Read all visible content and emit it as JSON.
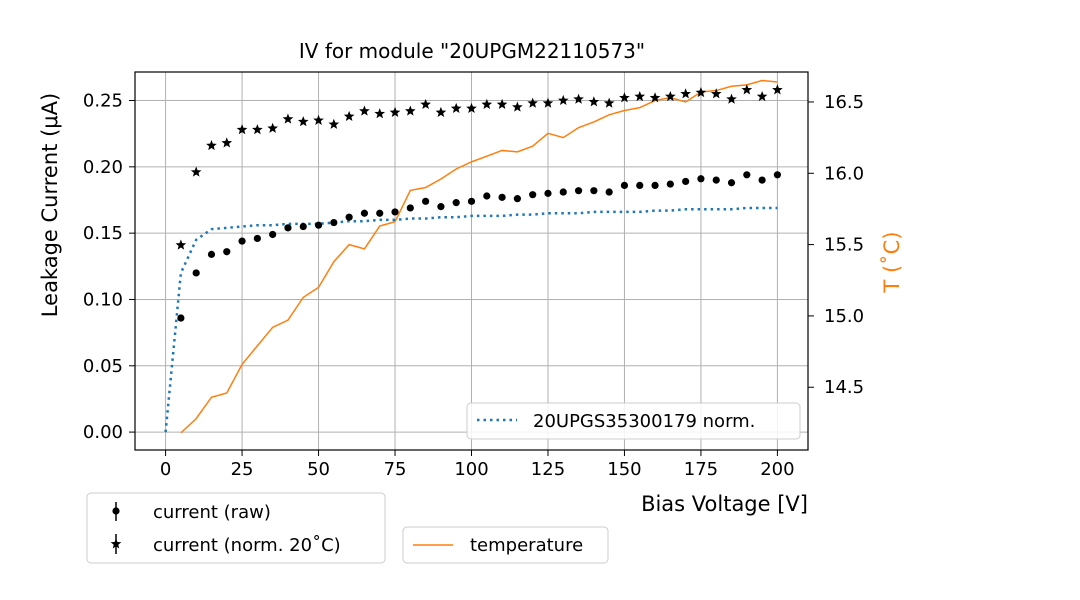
{
  "chart_data": {
    "type": "scatter",
    "title": "IV for module \"20UPGM22110573\"",
    "xlabel": "Bias Voltage [V]",
    "ylabel": "Leakage Current (μA)",
    "y2label": "T (˚C)",
    "xlim": [
      -10,
      210
    ],
    "ylim": [
      -0.0135,
      0.2715
    ],
    "y2lim": [
      14.06,
      16.71
    ],
    "x_ticks": [
      0,
      25,
      50,
      75,
      100,
      125,
      150,
      175,
      200
    ],
    "x_tick_labels": [
      "0",
      "25",
      "50",
      "75",
      "100",
      "125",
      "150",
      "175",
      "200"
    ],
    "y_ticks": [
      0,
      0.05,
      0.1,
      0.15,
      0.2,
      0.25
    ],
    "y_tick_labels": [
      "0.00",
      "0.05",
      "0.10",
      "0.15",
      "0.20",
      "0.25"
    ],
    "y2_ticks": [
      14.5,
      15.0,
      15.5,
      16.0,
      16.5
    ],
    "y2_tick_labels": [
      "14.5",
      "15.0",
      "15.5",
      "16.0",
      "16.5"
    ],
    "grid": true,
    "colors": {
      "raw": "#000000",
      "norm": "#000000",
      "reference": "#1f77b4",
      "temperature": "#ff7f0e",
      "y2label": "#ff7f0e"
    },
    "series": [
      {
        "name": "current (raw)",
        "axis": "left",
        "marker": "circle",
        "x": [
          5,
          10,
          15,
          20,
          25,
          30,
          35,
          40,
          45,
          50,
          55,
          60,
          65,
          70,
          75,
          80,
          85,
          90,
          95,
          100,
          105,
          110,
          115,
          120,
          125,
          130,
          135,
          140,
          145,
          150,
          155,
          160,
          165,
          170,
          175,
          180,
          185,
          190,
          195,
          200
        ],
        "values": [
          0.086,
          0.12,
          0.134,
          0.136,
          0.144,
          0.146,
          0.149,
          0.154,
          0.155,
          0.156,
          0.158,
          0.162,
          0.165,
          0.165,
          0.166,
          0.169,
          0.174,
          0.17,
          0.173,
          0.174,
          0.178,
          0.177,
          0.176,
          0.179,
          0.18,
          0.181,
          0.182,
          0.182,
          0.181,
          0.186,
          0.186,
          0.186,
          0.187,
          0.189,
          0.191,
          0.19,
          0.188,
          0.194,
          0.19,
          0.194
        ]
      },
      {
        "name": "current (norm. 20˚C)",
        "axis": "left",
        "marker": "star",
        "x": [
          5,
          10,
          15,
          20,
          25,
          30,
          35,
          40,
          45,
          50,
          55,
          60,
          65,
          70,
          75,
          80,
          85,
          90,
          95,
          100,
          105,
          110,
          115,
          120,
          125,
          130,
          135,
          140,
          145,
          150,
          155,
          160,
          165,
          170,
          175,
          180,
          185,
          190,
          195,
          200
        ],
        "values": [
          0.141,
          0.196,
          0.216,
          0.218,
          0.228,
          0.228,
          0.229,
          0.236,
          0.234,
          0.235,
          0.232,
          0.238,
          0.242,
          0.24,
          0.241,
          0.242,
          0.247,
          0.241,
          0.244,
          0.244,
          0.247,
          0.247,
          0.245,
          0.248,
          0.248,
          0.25,
          0.251,
          0.249,
          0.248,
          0.252,
          0.253,
          0.252,
          0.253,
          0.255,
          0.256,
          0.255,
          0.251,
          0.258,
          0.253,
          0.258
        ]
      },
      {
        "name": "20UPGS35300179 norm.",
        "axis": "left",
        "style": "dotted",
        "x": [
          0,
          5,
          10,
          15,
          20,
          25,
          30,
          35,
          40,
          45,
          50,
          55,
          60,
          65,
          70,
          75,
          80,
          85,
          90,
          95,
          100,
          105,
          110,
          115,
          120,
          125,
          130,
          135,
          140,
          145,
          150,
          155,
          160,
          165,
          170,
          175,
          180,
          185,
          190,
          195,
          200
        ],
        "values": [
          0.0,
          0.12,
          0.145,
          0.153,
          0.154,
          0.155,
          0.156,
          0.156,
          0.157,
          0.157,
          0.157,
          0.158,
          0.159,
          0.159,
          0.16,
          0.16,
          0.161,
          0.161,
          0.162,
          0.162,
          0.163,
          0.163,
          0.163,
          0.164,
          0.164,
          0.165,
          0.165,
          0.165,
          0.166,
          0.166,
          0.166,
          0.166,
          0.167,
          0.167,
          0.168,
          0.168,
          0.168,
          0.168,
          0.169,
          0.169,
          0.169
        ]
      },
      {
        "name": "temperature",
        "axis": "right",
        "style": "line",
        "x": [
          5,
          10,
          15,
          20,
          25,
          30,
          35,
          40,
          45,
          50,
          55,
          60,
          65,
          70,
          75,
          80,
          85,
          90,
          95,
          100,
          105,
          110,
          115,
          120,
          125,
          130,
          135,
          140,
          145,
          150,
          155,
          160,
          165,
          170,
          175,
          180,
          185,
          190,
          195,
          200
        ],
        "values": [
          14.18,
          14.28,
          14.43,
          14.46,
          14.66,
          14.79,
          14.92,
          14.97,
          15.13,
          15.2,
          15.38,
          15.5,
          15.47,
          15.63,
          15.66,
          15.88,
          15.9,
          15.96,
          16.03,
          16.08,
          16.12,
          16.16,
          16.15,
          16.19,
          16.28,
          16.25,
          16.32,
          16.36,
          16.41,
          16.44,
          16.46,
          16.51,
          16.53,
          16.5,
          16.57,
          16.58,
          16.61,
          16.62,
          16.65,
          16.64
        ]
      }
    ],
    "legends": {
      "reference": [
        "20UPGS35300179 norm."
      ],
      "left_bottom": [
        "current (raw)",
        "current (norm. 20˚C)"
      ],
      "right_bottom": [
        "temperature"
      ]
    }
  }
}
